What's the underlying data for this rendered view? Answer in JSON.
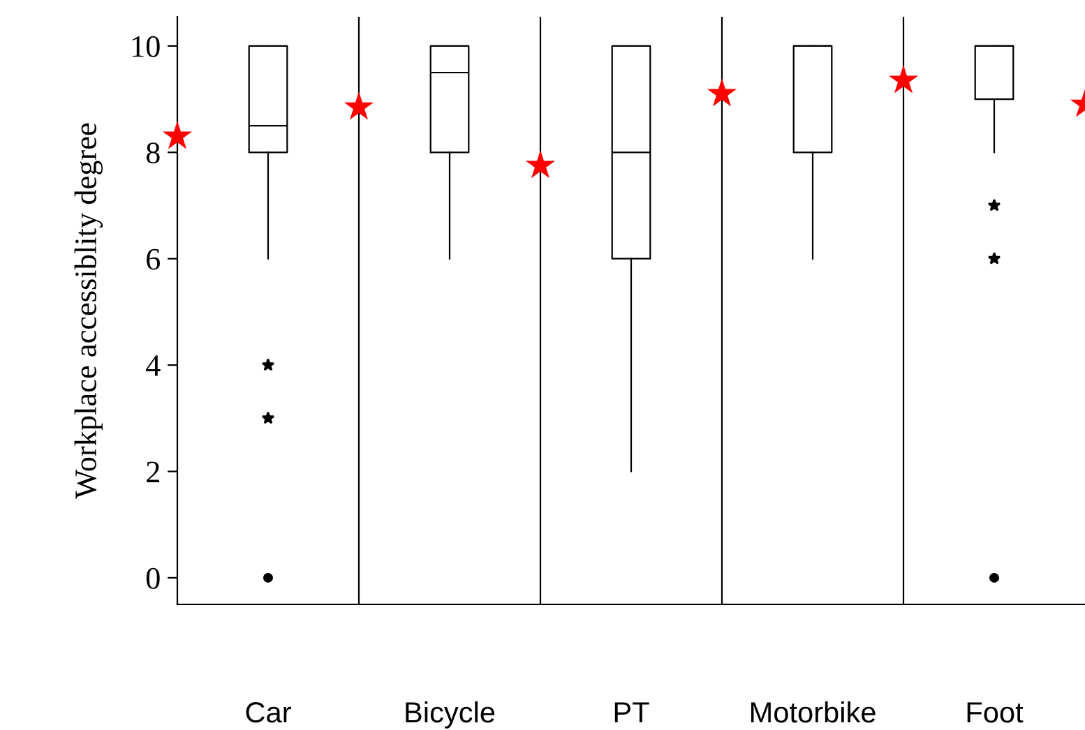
{
  "chart_data": {
    "type": "box",
    "ylabel": "Workplace accessiblity degree",
    "categories": [
      null,
      "Car",
      null,
      "Bicycle",
      null,
      "PT",
      null,
      "Motorbike",
      null,
      "Foot",
      null
    ],
    "boxes": [
      null,
      {
        "low": 6,
        "q1": 8,
        "median": 8.5,
        "q3": 10,
        "high": 10,
        "outliers": [
          4,
          3
        ]
      },
      null,
      {
        "low": 6,
        "q1": 8,
        "median": 9.5,
        "q3": 10,
        "high": 10
      },
      null,
      {
        "low": 2,
        "q1": 6,
        "median": 8,
        "q3": 10,
        "high": 10
      },
      null,
      {
        "low": 6,
        "q1": 8,
        "median": 10,
        "q3": 10,
        "high": 10
      },
      null,
      {
        "low": 8,
        "q1": 9,
        "median": 10,
        "q3": 10,
        "high": 10,
        "outliers": [
          7,
          6
        ]
      },
      null
    ],
    "series": [
      {
        "type": "scatter",
        "marker": "circle",
        "color": "#000000",
        "x": [
          "Car",
          "Foot"
        ],
        "values": [
          0,
          0
        ]
      },
      {
        "type": "scatter",
        "marker": "star",
        "color": "#ff0000",
        "values": [
          8.3,
          null,
          8.85,
          null,
          7.75,
          null,
          9.1,
          null,
          9.35,
          null,
          8.9
        ]
      }
    ],
    "ylim": [
      -0.5,
      10.55
    ],
    "yticks": [
      0,
      2,
      4,
      6,
      8,
      10
    ],
    "grid": "x"
  }
}
